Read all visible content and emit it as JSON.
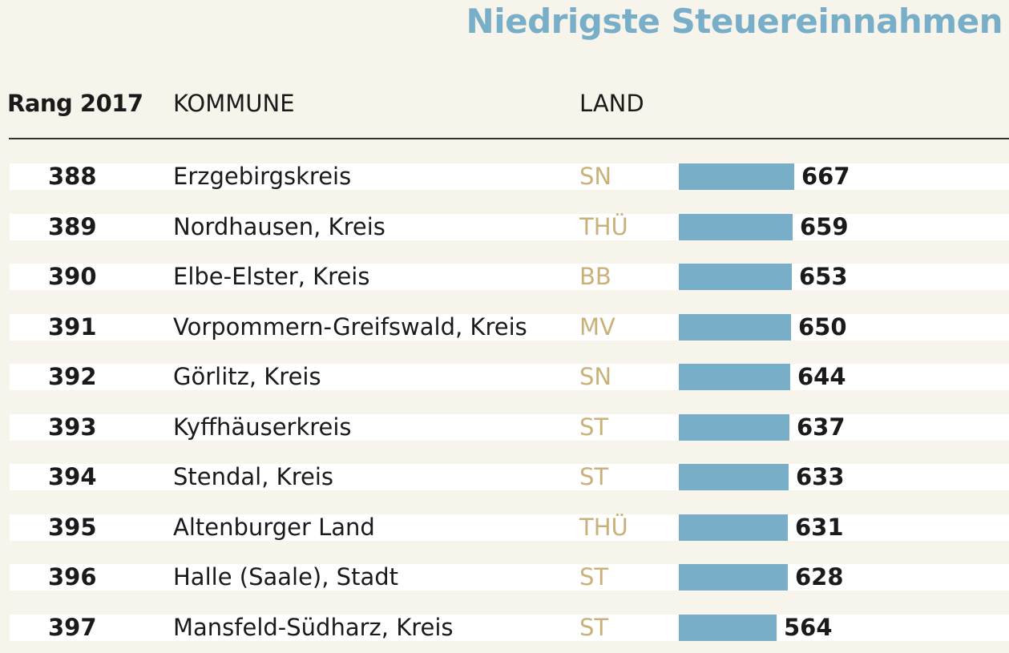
{
  "title": "Niedrigste Steuereinnahmen",
  "columns": {
    "rank": "Rang 2017",
    "kommune": "KOMMUNE",
    "land": "LAND"
  },
  "colors": {
    "title": "#78aec8",
    "bar": "#78aec8",
    "land": "#c9b27a",
    "background": "#f7f4ec",
    "row_band": "#ffffff"
  },
  "rows": [
    {
      "rank": "388",
      "kommune": "Erzgebirgskreis",
      "land": "SN",
      "value": "667"
    },
    {
      "rank": "389",
      "kommune": "Nordhausen, Kreis",
      "land": "THÜ",
      "value": "659"
    },
    {
      "rank": "390",
      "kommune": "Elbe-Elster, Kreis",
      "land": "BB",
      "value": "653"
    },
    {
      "rank": "391",
      "kommune": "Vorpommern-Greifswald, Kreis",
      "land": "MV",
      "value": "650"
    },
    {
      "rank": "392",
      "kommune": "Görlitz, Kreis",
      "land": "SN",
      "value": "644"
    },
    {
      "rank": "393",
      "kommune": "Kyffhäuserkreis",
      "land": "ST",
      "value": "637"
    },
    {
      "rank": "394",
      "kommune": "Stendal, Kreis",
      "land": "ST",
      "value": "633"
    },
    {
      "rank": "395",
      "kommune": "Altenburger Land",
      "land": "THÜ",
      "value": "631"
    },
    {
      "rank": "396",
      "kommune": "Halle (Saale), Stadt",
      "land": "ST",
      "value": "628"
    },
    {
      "rank": "397",
      "kommune": "Mansfeld-Südharz, Kreis",
      "land": "ST",
      "value": "564"
    }
  ],
  "chart_data": {
    "type": "bar",
    "title": "Niedrigste Steuereinnahmen",
    "categories": [
      "Erzgebirgskreis",
      "Nordhausen, Kreis",
      "Elbe-Elster, Kreis",
      "Vorpommern-Greifswald, Kreis",
      "Görlitz, Kreis",
      "Kyffhäuserkreis",
      "Stendal, Kreis",
      "Altenburger Land",
      "Halle (Saale), Stadt",
      "Mansfeld-Südharz, Kreis"
    ],
    "values": [
      667,
      659,
      653,
      650,
      644,
      637,
      633,
      631,
      628,
      564
    ],
    "orientation": "horizontal",
    "grid": false,
    "legend": "none"
  }
}
